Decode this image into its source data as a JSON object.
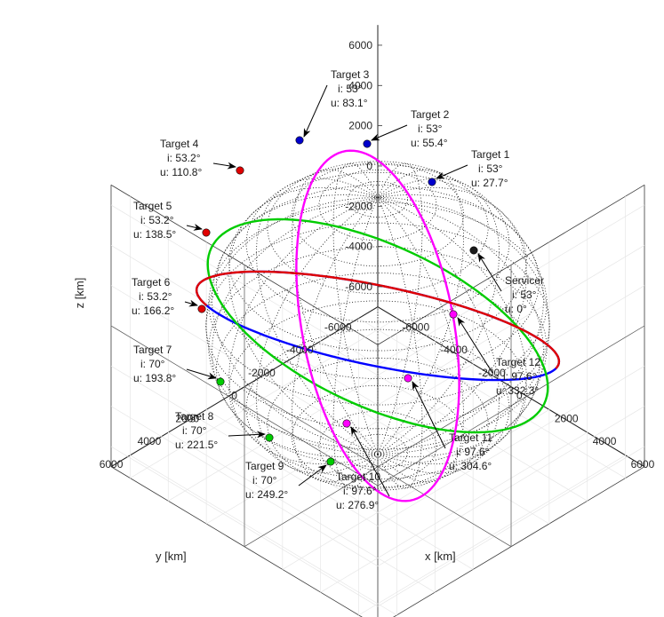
{
  "chart_data": {
    "type": "scatter",
    "projection": "3d",
    "xlabel": "x [km]",
    "ylabel": "y [km]",
    "zlabel": "z [km]",
    "xlim": [
      -7000,
      7000
    ],
    "ylim": [
      -7000,
      7000
    ],
    "zlim": [
      -7000,
      7000
    ],
    "x_ticks": [
      "-6000",
      "-4000",
      "-2000",
      "0",
      "2000",
      "4000",
      "6000"
    ],
    "y_ticks": [
      "-6000",
      "-4000",
      "-2000",
      "0",
      "2000",
      "4000",
      "6000"
    ],
    "z_ticks": [
      "-6000",
      "-4000",
      "-2000",
      "0",
      "2000",
      "4000",
      "6000"
    ],
    "grid": "on",
    "earth": {
      "style": "dotted wireframe sphere",
      "color": "#000000"
    },
    "orbit_colors": {
      "i53": "#e00000",
      "i53_2": "#0000ff",
      "i70": "#00cc00",
      "i97.6": "#ff00ff"
    },
    "points": [
      {
        "name": "Servicer",
        "i_label": "i: 53°",
        "u_label": "u: 0°",
        "i": 53,
        "u": 0,
        "color": "#1a1a1a"
      },
      {
        "name": "Target 1",
        "i_label": "i: 53°",
        "u_label": "u: 27.7°",
        "i": 53,
        "u": 27.7,
        "color": "#0000cc"
      },
      {
        "name": "Target 2",
        "i_label": "i: 53°",
        "u_label": "u: 55.4°",
        "i": 53,
        "u": 55.4,
        "color": "#0000cc"
      },
      {
        "name": "Target 3",
        "i_label": "i: 53°",
        "u_label": "u: 83.1°",
        "i": 53,
        "u": 83.1,
        "color": "#0000cc"
      },
      {
        "name": "Target 4",
        "i_label": "i: 53.2°",
        "u_label": "u: 110.8°",
        "i": 53.2,
        "u": 110.8,
        "color": "#e00000"
      },
      {
        "name": "Target 5",
        "i_label": "i: 53.2°",
        "u_label": "u: 138.5°",
        "i": 53.2,
        "u": 138.5,
        "color": "#e00000"
      },
      {
        "name": "Target 6",
        "i_label": "i: 53.2°",
        "u_label": "u: 166.2°",
        "i": 53.2,
        "u": 166.2,
        "color": "#e00000"
      },
      {
        "name": "Target 7",
        "i_label": "i: 70°",
        "u_label": "u: 193.8°",
        "i": 70,
        "u": 193.8,
        "color": "#00cc00"
      },
      {
        "name": "Target 8",
        "i_label": "i: 70°",
        "u_label": "u: 221.5°",
        "i": 70,
        "u": 221.5,
        "color": "#00cc00"
      },
      {
        "name": "Target 9",
        "i_label": "i: 70°",
        "u_label": "u: 249.2°",
        "i": 70,
        "u": 249.2,
        "color": "#00cc00"
      },
      {
        "name": "Target 10",
        "i_label": "i: 97.6°",
        "u_label": "u: 276.9°",
        "i": 97.6,
        "u": 276.9,
        "color": "#ff00ff"
      },
      {
        "name": "Target 11",
        "i_label": "i: 97.6°",
        "u_label": "u: 304.6°",
        "i": 97.6,
        "u": 304.6,
        "color": "#ff00ff"
      },
      {
        "name": "Target 12",
        "i_label": "i: 97.6°",
        "u_label": "u: 332.3°",
        "i": 97.6,
        "u": 332.3,
        "color": "#ff00ff"
      }
    ]
  }
}
